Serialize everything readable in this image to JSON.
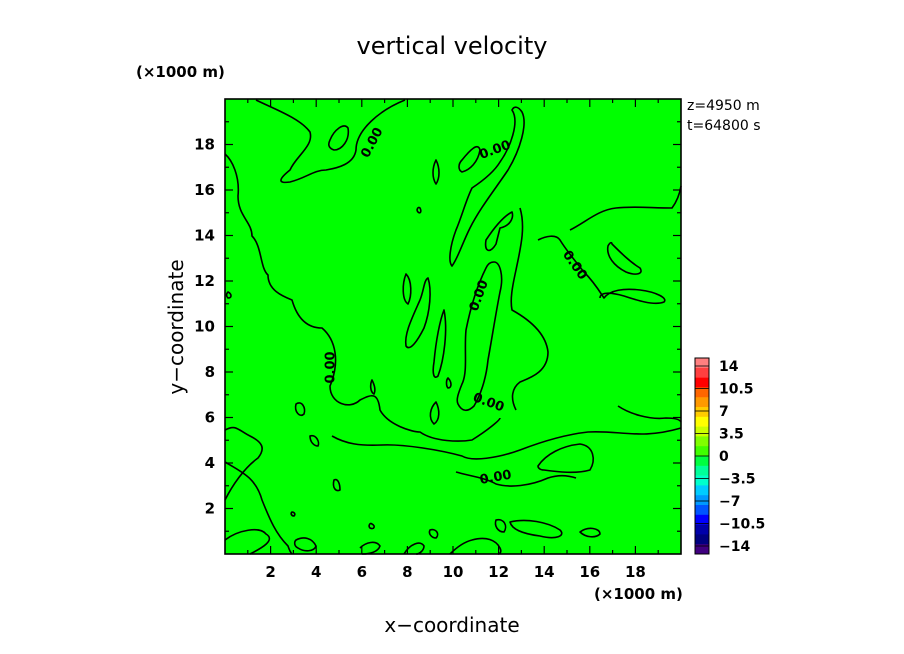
{
  "chart_data": {
    "type": "heatmap",
    "title": "vertical velocity",
    "xlabel": "x−coordinate",
    "ylabel": "y−coordinate",
    "x_unit": "(×1000 m)",
    "y_unit": "(×1000 m)",
    "xlim": [
      0,
      20
    ],
    "ylim": [
      0,
      20
    ],
    "xticks": [
      2,
      4,
      6,
      8,
      10,
      12,
      14,
      16,
      18
    ],
    "yticks": [
      2,
      4,
      6,
      8,
      10,
      12,
      14,
      16,
      18
    ],
    "annotations": [
      "z=4950 m",
      "t=64800 s"
    ],
    "field_color": "#00ff00",
    "contour_level": 0,
    "contour_labels": [
      {
        "text": "0.00",
        "x": 6.6,
        "y": 18.0
      },
      {
        "text": "0.00",
        "x": 11.9,
        "y": 17.6
      },
      {
        "text": "0.00",
        "x": 11.3,
        "y": 11.3
      },
      {
        "text": "0.00",
        "x": 4.8,
        "y": 8.2
      },
      {
        "text": "0.00",
        "x": 11.5,
        "y": 6.5
      },
      {
        "text": "0.00",
        "x": 11.9,
        "y": 3.2
      },
      {
        "text": "0.00",
        "x": 15.2,
        "y": 12.6
      }
    ],
    "colorbar": {
      "labels": [
        "14",
        "10.5",
        "7",
        "3.5",
        "0",
        "−3.5",
        "−7",
        "−10.5",
        "−14"
      ],
      "colors": [
        "#ff8080",
        "#ff4040",
        "#ff0000",
        "#ff6600",
        "#ff9900",
        "#ffcc00",
        "#ffff00",
        "#ccff00",
        "#80ff00",
        "#40ff00",
        "#00ff40",
        "#00ff99",
        "#00ffcc",
        "#00ccff",
        "#0099ff",
        "#0055ff",
        "#0000ff",
        "#0000aa",
        "#000080",
        "#400080"
      ]
    }
  }
}
